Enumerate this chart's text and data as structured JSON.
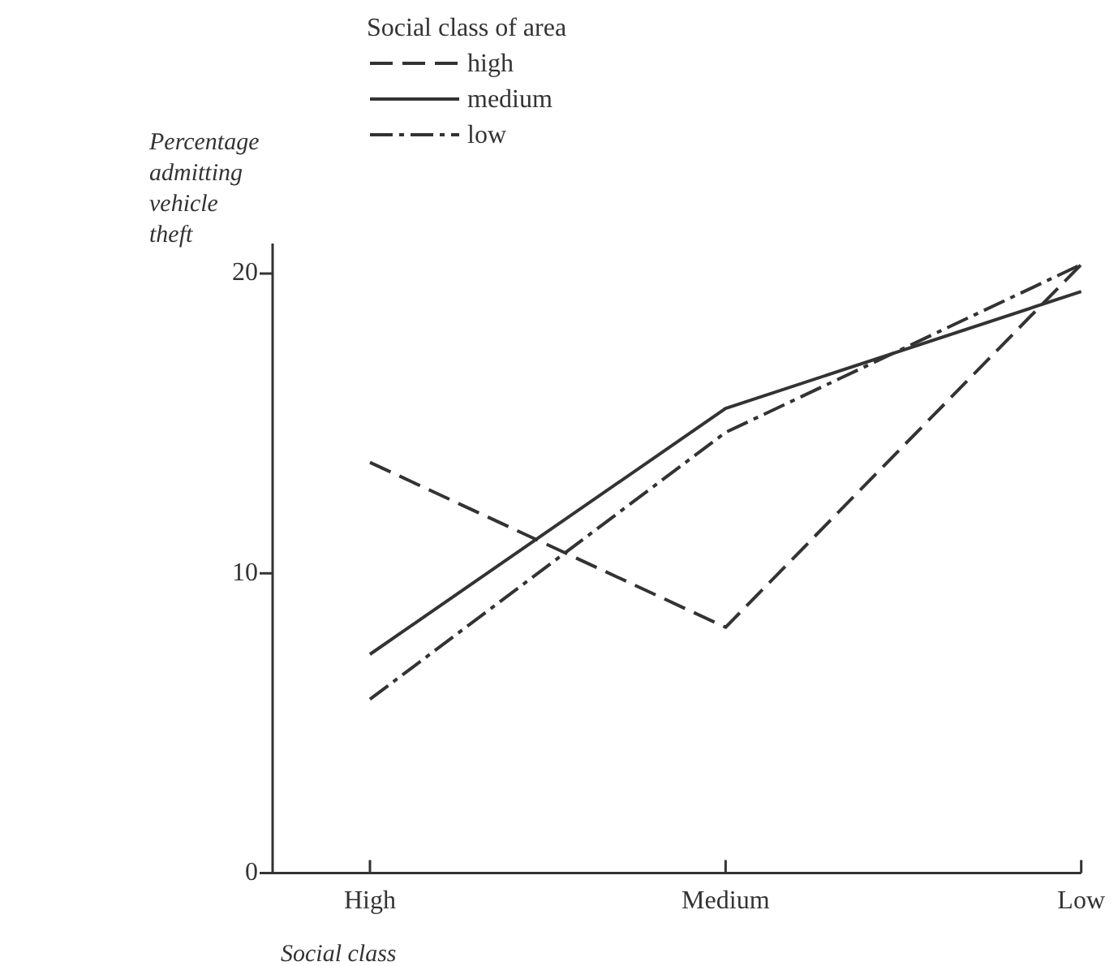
{
  "chart_data": {
    "type": "line",
    "xlabel": "Social class",
    "ylabel": "Percentage admitting vehicle theft",
    "legend_title": "Social class of area",
    "categories": [
      "High",
      "Medium",
      "Low"
    ],
    "series": [
      {
        "name": "high",
        "color": "#333333",
        "line_style": "dashed",
        "values": [
          13.7,
          8.2,
          20.3
        ]
      },
      {
        "name": "medium",
        "color": "#333333",
        "line_style": "solid",
        "values": [
          7.3,
          15.5,
          19.4
        ]
      },
      {
        "name": "low",
        "color": "#333333",
        "line_style": "dashdot",
        "values": [
          5.8,
          14.7,
          20.3
        ]
      }
    ],
    "ylim": [
      0,
      21
    ],
    "yticks": [
      0,
      10,
      20
    ],
    "grid": false,
    "legend": "top left",
    "marker": "none"
  }
}
